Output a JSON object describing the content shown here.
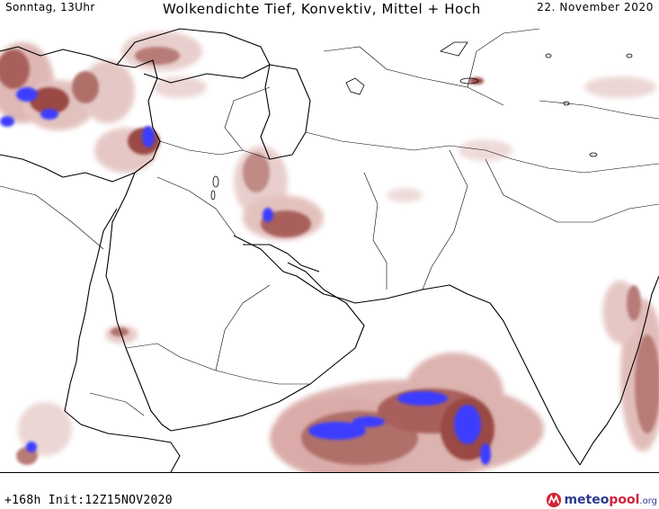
{
  "header": {
    "left_label": "Sonntag, 13Uhr",
    "title": "Wolkendichte  Tief, Konvektiv, Mittel + Hoch",
    "right_label": "22. November 2020"
  },
  "footer": {
    "run_info": "+168h Init:12Z15NOV2020",
    "logo": {
      "brand_main": "meteo",
      "brand_accent": "pool",
      "brand_suffix": ".org"
    }
  },
  "map": {
    "icon": "map-icon",
    "colors": {
      "cloud_light": "#e6c9c7",
      "cloud_mid": "#c08a86",
      "cloud_dense": "#8c3b36",
      "cloud_max": "#3d3dff",
      "borders": "#000000"
    }
  }
}
